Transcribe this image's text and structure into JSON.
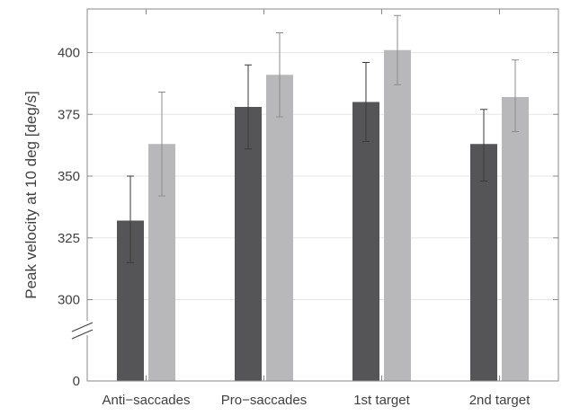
{
  "chart_data": {
    "type": "bar",
    "title": "",
    "xlabel": "",
    "ylabel": "Peak velocity at 10 deg [deg/s]",
    "categories": [
      "Anti−saccades",
      "Pro−saccades",
      "1st target",
      "2nd target"
    ],
    "series": [
      {
        "color": "#555558",
        "values": [
          332,
          378,
          380,
          363
        ],
        "error_low": [
          315,
          361,
          364,
          348
        ],
        "error_high": [
          350,
          395,
          396,
          377
        ]
      },
      {
        "color": "#b8b8bb",
        "values": [
          363,
          391,
          401,
          382
        ],
        "error_low": [
          342,
          374,
          387,
          368
        ],
        "error_high": [
          384,
          408,
          415,
          397
        ]
      }
    ],
    "yticks": [
      0,
      300,
      325,
      350,
      375,
      400
    ],
    "ylim": [
      290,
      420
    ],
    "y_axis_break": true,
    "grid": true,
    "legend": "none"
  }
}
